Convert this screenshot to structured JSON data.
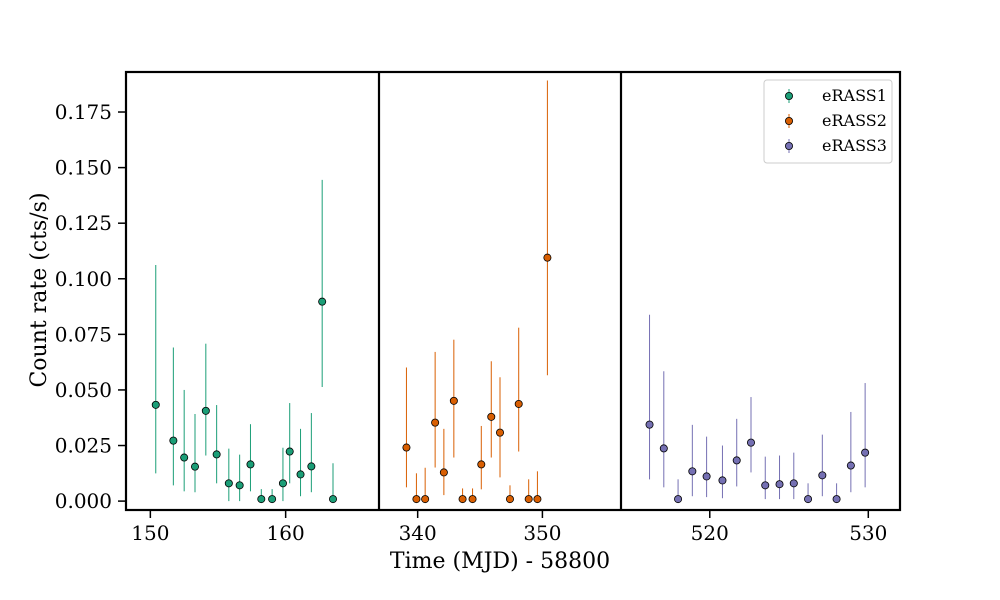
{
  "chart_data": {
    "type": "scatter",
    "xlabel": "Time (MJD) - 58800",
    "ylabel": "Count rate (cts/s)",
    "ylim": [
      -0.004,
      0.193
    ],
    "yticks": [
      0.0,
      0.025,
      0.05,
      0.075,
      0.1,
      0.125,
      0.15,
      0.175
    ],
    "ytick_labels": [
      "0.000",
      "0.025",
      "0.050",
      "0.075",
      "0.100",
      "0.125",
      "0.150",
      "0.175"
    ],
    "legend_position": "top-right",
    "panels": [
      {
        "name": "eRASS1",
        "xlim": [
          148.2,
          166.9
        ],
        "xticks": [
          150,
          160
        ],
        "xtick_labels": [
          "150",
          "160"
        ]
      },
      {
        "name": "eRASS2",
        "xlim": [
          336.9,
          356.3
        ],
        "xticks": [
          340,
          350
        ],
        "xtick_labels": [
          "340",
          "350"
        ]
      },
      {
        "name": "eRASS3",
        "xlim": [
          514.4,
          532.0
        ],
        "xticks": [
          520,
          530
        ],
        "xtick_labels": [
          "520",
          "530"
        ]
      }
    ],
    "series": [
      {
        "name": "eRASS1",
        "color": "#1b9e77",
        "points": [
          {
            "x": 150.4,
            "y": 0.0433,
            "lo": 0.0125,
            "hi": 0.1062
          },
          {
            "x": 151.7,
            "y": 0.0272,
            "lo": 0.0071,
            "hi": 0.0691
          },
          {
            "x": 152.5,
            "y": 0.0196,
            "lo": 0.0044,
            "hi": 0.05
          },
          {
            "x": 153.3,
            "y": 0.0155,
            "lo": 0.004,
            "hi": 0.0392
          },
          {
            "x": 154.1,
            "y": 0.0406,
            "lo": 0.0205,
            "hi": 0.0708
          },
          {
            "x": 154.9,
            "y": 0.021,
            "lo": 0.008,
            "hi": 0.0432
          },
          {
            "x": 155.8,
            "y": 0.008,
            "lo": 0.0,
            "hi": 0.0236
          },
          {
            "x": 156.6,
            "y": 0.0071,
            "lo": 0.0,
            "hi": 0.0209
          },
          {
            "x": 157.4,
            "y": 0.0165,
            "lo": 0.0044,
            "hi": 0.0346
          },
          {
            "x": 158.2,
            "y": 0.0009,
            "lo": 0.0,
            "hi": 0.0054
          },
          {
            "x": 159.0,
            "y": 0.0009,
            "lo": 0.0,
            "hi": 0.0054
          },
          {
            "x": 159.8,
            "y": 0.008,
            "lo": 0.0,
            "hi": 0.024
          },
          {
            "x": 160.3,
            "y": 0.0223,
            "lo": 0.008,
            "hi": 0.0441
          },
          {
            "x": 161.1,
            "y": 0.012,
            "lo": 0.0022,
            "hi": 0.0325
          },
          {
            "x": 161.9,
            "y": 0.0156,
            "lo": 0.004,
            "hi": 0.0396
          },
          {
            "x": 162.7,
            "y": 0.0897,
            "lo": 0.0513,
            "hi": 0.1445
          },
          {
            "x": 163.5,
            "y": 0.0009,
            "lo": 0.0,
            "hi": 0.017
          }
        ]
      },
      {
        "name": "eRASS2",
        "color": "#d95f02",
        "points": [
          {
            "x": 339.1,
            "y": 0.0241,
            "lo": 0.0062,
            "hi": 0.0601
          },
          {
            "x": 339.9,
            "y": 0.0009,
            "lo": 0.0,
            "hi": 0.0125
          },
          {
            "x": 340.6,
            "y": 0.0009,
            "lo": 0.0,
            "hi": 0.015
          },
          {
            "x": 341.4,
            "y": 0.0353,
            "lo": 0.0151,
            "hi": 0.0671
          },
          {
            "x": 342.1,
            "y": 0.0129,
            "lo": 0.0027,
            "hi": 0.0325
          },
          {
            "x": 342.9,
            "y": 0.0451,
            "lo": 0.0196,
            "hi": 0.0726
          },
          {
            "x": 343.6,
            "y": 0.0009,
            "lo": 0.0,
            "hi": 0.0057
          },
          {
            "x": 344.4,
            "y": 0.0009,
            "lo": 0.0,
            "hi": 0.0057
          },
          {
            "x": 345.1,
            "y": 0.0165,
            "lo": 0.0053,
            "hi": 0.0338
          },
          {
            "x": 345.9,
            "y": 0.0379,
            "lo": 0.0196,
            "hi": 0.0629
          },
          {
            "x": 346.6,
            "y": 0.0308,
            "lo": 0.0107,
            "hi": 0.0557
          },
          {
            "x": 347.4,
            "y": 0.0009,
            "lo": 0.0,
            "hi": 0.0071
          },
          {
            "x": 348.1,
            "y": 0.0437,
            "lo": 0.0223,
            "hi": 0.078
          },
          {
            "x": 348.9,
            "y": 0.0009,
            "lo": 0.0,
            "hi": 0.0098
          },
          {
            "x": 349.6,
            "y": 0.0009,
            "lo": 0.0,
            "hi": 0.0134
          },
          {
            "x": 350.4,
            "y": 0.1095,
            "lo": 0.0566,
            "hi": 0.1892
          }
        ]
      },
      {
        "name": "eRASS3",
        "color": "#7570b3",
        "points": [
          {
            "x": 516.2,
            "y": 0.0344,
            "lo": 0.0098,
            "hi": 0.0838
          },
          {
            "x": 517.1,
            "y": 0.0237,
            "lo": 0.0062,
            "hi": 0.0584
          },
          {
            "x": 518.0,
            "y": 0.0009,
            "lo": 0.0,
            "hi": 0.0098
          },
          {
            "x": 518.9,
            "y": 0.0134,
            "lo": 0.0022,
            "hi": 0.0343
          },
          {
            "x": 519.8,
            "y": 0.0111,
            "lo": 0.0018,
            "hi": 0.029
          },
          {
            "x": 520.8,
            "y": 0.0093,
            "lo": 0.0013,
            "hi": 0.025
          },
          {
            "x": 521.7,
            "y": 0.0183,
            "lo": 0.0066,
            "hi": 0.037
          },
          {
            "x": 522.6,
            "y": 0.0263,
            "lo": 0.0129,
            "hi": 0.0468
          },
          {
            "x": 523.5,
            "y": 0.0071,
            "lo": 0.0009,
            "hi": 0.02
          },
          {
            "x": 524.4,
            "y": 0.0076,
            "lo": 0.0009,
            "hi": 0.0205
          },
          {
            "x": 525.3,
            "y": 0.008,
            "lo": 0.0009,
            "hi": 0.0218
          },
          {
            "x": 526.2,
            "y": 0.0009,
            "lo": 0.0,
            "hi": 0.008
          },
          {
            "x": 527.1,
            "y": 0.0116,
            "lo": 0.0022,
            "hi": 0.0299
          },
          {
            "x": 528.0,
            "y": 0.0009,
            "lo": 0.0,
            "hi": 0.008
          },
          {
            "x": 528.9,
            "y": 0.016,
            "lo": 0.004,
            "hi": 0.0401
          },
          {
            "x": 529.8,
            "y": 0.0218,
            "lo": 0.0062,
            "hi": 0.0531
          }
        ]
      }
    ]
  }
}
